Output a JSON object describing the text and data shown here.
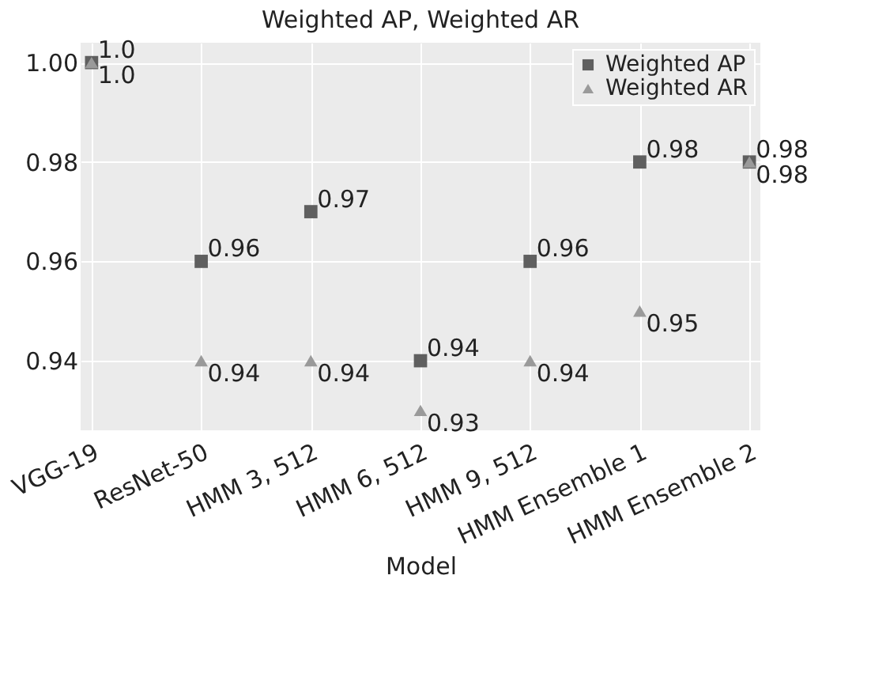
{
  "chart_data": {
    "type": "scatter",
    "title": "Weighted AP, Weighted AR",
    "xlabel": "Model",
    "categories": [
      "VGG-19",
      "ResNet-50",
      "HMM 3, 512",
      "HMM 6, 512",
      "HMM 9, 512",
      "HMM Ensemble 1",
      "HMM Ensemble 2"
    ],
    "series": [
      {
        "name": "Weighted AP",
        "color": "#5f5f5f",
        "marker": "square",
        "values": [
          1.0,
          0.96,
          0.97,
          0.94,
          0.96,
          0.98,
          0.98
        ],
        "value_labels": [
          "1.0",
          "0.96",
          "0.97",
          "0.94",
          "0.96",
          "0.98",
          "0.98"
        ]
      },
      {
        "name": "Weighted AR",
        "color": "#9a9a9a",
        "marker": "triangle",
        "values": [
          1.0,
          0.94,
          0.94,
          0.93,
          0.94,
          0.95,
          0.98
        ],
        "value_labels": [
          "1.0",
          "0.94",
          "0.94",
          "0.93",
          "0.94",
          "0.95",
          "0.98"
        ]
      }
    ],
    "ylim": [
      0.926,
      1.004
    ],
    "yticks": [
      0.94,
      0.96,
      0.98,
      {
        "value": 1.0,
        "label": "1.00"
      }
    ],
    "grid": true,
    "legend": "top right"
  }
}
